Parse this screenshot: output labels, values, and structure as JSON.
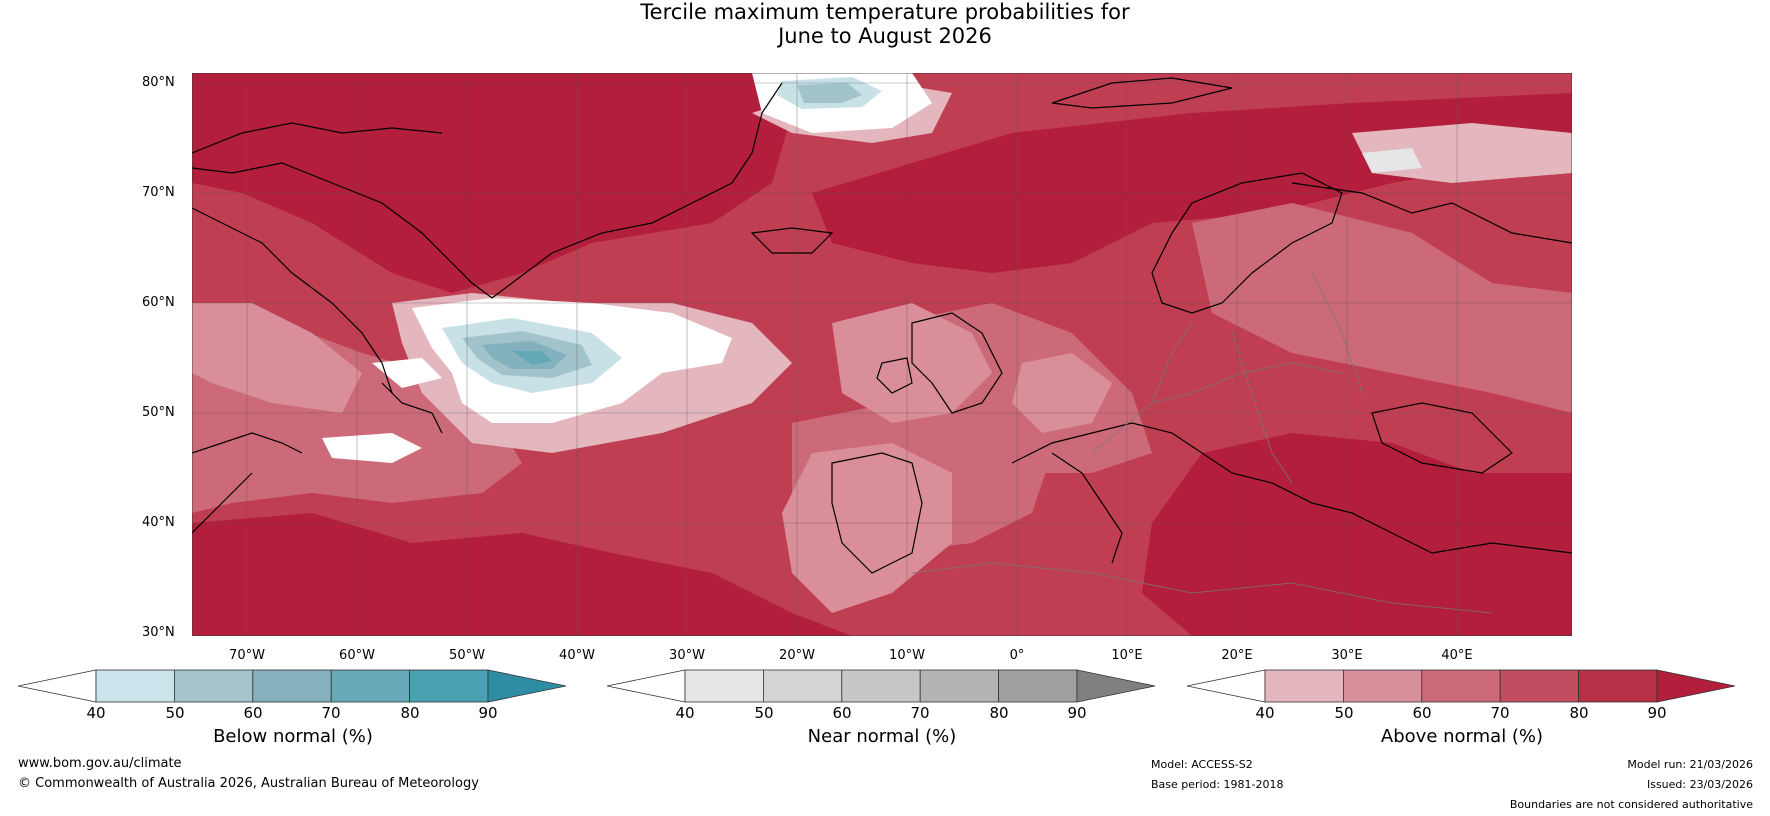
{
  "title": {
    "line1": "Tercile maximum temperature probabilities for",
    "line2": "June to August 2026"
  },
  "map": {
    "lat_labels": [
      "80°N",
      "70°N",
      "60°N",
      "50°N",
      "40°N",
      "30°N"
    ],
    "lon_labels": [
      "70°W",
      "60°W",
      "50°W",
      "40°W",
      "30°W",
      "20°W",
      "10°W",
      "0°",
      "10°E",
      "20°E",
      "30°E",
      "40°E"
    ],
    "colors": {
      "ocean_base": "#c03e52",
      "above_90": "#b21e3c",
      "above_80": "#c03e52",
      "above_70": "#cd6a7a",
      "above_60": "#d98e99",
      "above_50": "#e4b7bf",
      "near_40": "#ffffff",
      "below_50": "#c7e1e7",
      "below_60": "#a2c3cb",
      "below_70": "#84b1be",
      "below_80": "#64a9b8",
      "below_90": "#2f8da3"
    }
  },
  "colorbars": {
    "below": {
      "label": "Below normal (%)",
      "ticks": [
        "40",
        "50",
        "60",
        "70",
        "80",
        "90"
      ],
      "colors": [
        "#ffffff",
        "#cbe3ea",
        "#a6c4cc",
        "#86b1bf",
        "#67a9b8",
        "#49a2b2",
        "#2f8da3"
      ]
    },
    "near": {
      "label": "Near normal (%)",
      "ticks": [
        "40",
        "50",
        "60",
        "70",
        "80",
        "90"
      ],
      "colors": [
        "#ffffff",
        "#e6e6e6",
        "#d4d4d4",
        "#c7c7c7",
        "#b4b4b4",
        "#9f9f9f",
        "#808080"
      ]
    },
    "above": {
      "label": "Above normal (%)",
      "ticks": [
        "40",
        "50",
        "60",
        "70",
        "80",
        "90"
      ],
      "colors": [
        "#ffffff",
        "#e4b7bf",
        "#d8909c",
        "#cd6a7a",
        "#c24d61",
        "#b73046",
        "#b21e3c"
      ]
    }
  },
  "footer": {
    "website": "www.bom.gov.au/climate",
    "copyright": "© Commonwealth of Australia 2026, Australian Bureau of Meteorology",
    "model": "Model: ACCESS-S2",
    "base_period": "Base period: 1981-2018",
    "model_run": "Model run: 21/03/2026",
    "issued": "Issued: 23/03/2026",
    "disclaimer": "Boundaries are not considered authoritative"
  }
}
